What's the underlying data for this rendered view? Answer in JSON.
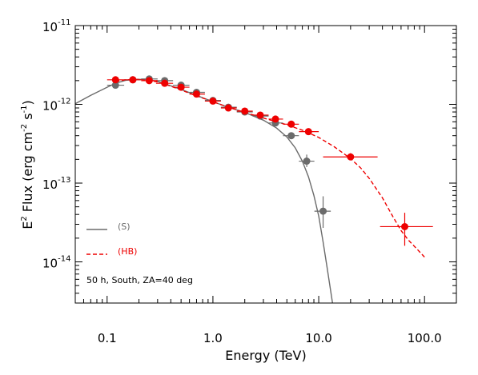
{
  "chart_data": {
    "type": "scatter",
    "xscale": "log",
    "yscale": "log",
    "xlim": [
      0.05,
      200
    ],
    "ylim": [
      3e-15,
      1e-11
    ],
    "grid": false,
    "xlabel": "Energy (TeV)",
    "ylabel": {
      "p1": "E",
      "sup1": "2",
      "p2": " Flux (erg cm",
      "sup2": "-2",
      "p3": " s",
      "sup3": "-1",
      "p4": ")"
    },
    "x_ticks": [
      {
        "value": 0.1,
        "label": "0.1"
      },
      {
        "value": 1,
        "label": "1.0"
      },
      {
        "value": 10,
        "label": "10.0"
      },
      {
        "value": 100,
        "label": "100.0"
      }
    ],
    "y_ticks": [
      {
        "value": 1e-14,
        "base": "10",
        "exp": "-14"
      },
      {
        "value": 1e-13,
        "base": "10",
        "exp": "-13"
      },
      {
        "value": 1e-12,
        "base": "10",
        "exp": "-12"
      },
      {
        "value": 1e-11,
        "base": "10",
        "exp": "-11"
      }
    ],
    "annotation": "50 h, South, ZA=40 deg",
    "series": [
      {
        "name": "(S)",
        "color": "#6b6b6b",
        "line_style": "solid",
        "curve": {
          "x": [
            0.05,
            0.07,
            0.1,
            0.12,
            0.15,
            0.2,
            0.25,
            0.3,
            0.4,
            0.5,
            0.7,
            1.0,
            1.4,
            2.0,
            3.0,
            4.0,
            5.0,
            6.0,
            7.0,
            8.0,
            9.0,
            10.0,
            11.0,
            12.0,
            13.5
          ],
          "y": [
            1.02e-12,
            1.3e-12,
            1.65e-12,
            1.85e-12,
            2.02e-12,
            2.08e-12,
            2.05e-12,
            1.95e-12,
            1.72e-12,
            1.55e-12,
            1.3e-12,
            1.08e-12,
            9.2e-13,
            7.9e-13,
            6.3e-13,
            5e-13,
            3.85e-13,
            2.8e-13,
            1.9e-13,
            1.2e-13,
            7e-14,
            3.8e-14,
            1.8e-14,
            8.5e-15,
            3e-15
          ]
        },
        "points": [
          {
            "x": 0.12,
            "y": 1.75e-12,
            "xerr": [
              0.1,
              0.145
            ],
            "yerr": [
              1.65e-12,
              1.85e-12
            ]
          },
          {
            "x": 0.175,
            "y": 2.05e-12,
            "xerr": [
              0.145,
              0.21
            ],
            "yerr": [
              1.95e-12,
              2.15e-12
            ]
          },
          {
            "x": 0.25,
            "y": 2.1e-12,
            "xerr": [
              0.21,
              0.3
            ],
            "yerr": [
              2e-12,
              2.2e-12
            ]
          },
          {
            "x": 0.35,
            "y": 2e-12,
            "xerr": [
              0.29,
              0.42
            ],
            "yerr": [
              1.9e-12,
              2.1e-12
            ]
          },
          {
            "x": 0.5,
            "y": 1.75e-12,
            "xerr": [
              0.42,
              0.6
            ],
            "yerr": [
              1.65e-12,
              1.85e-12
            ]
          },
          {
            "x": 0.7,
            "y": 1.42e-12,
            "xerr": [
              0.6,
              0.84
            ],
            "yerr": [
              1.35e-12,
              1.5e-12
            ]
          },
          {
            "x": 1.0,
            "y": 1.12e-12,
            "xerr": [
              0.84,
              1.19
            ],
            "yerr": [
              1.06e-12,
              1.18e-12
            ]
          },
          {
            "x": 1.4,
            "y": 9.2e-13,
            "xerr": [
              1.19,
              1.68
            ],
            "yerr": [
              8.7e-13,
              9.7e-13
            ]
          },
          {
            "x": 2.0,
            "y": 8e-13,
            "xerr": [
              1.68,
              2.38
            ],
            "yerr": [
              7.6e-13,
              8.4e-13
            ]
          },
          {
            "x": 2.8,
            "y": 7.1e-13,
            "xerr": [
              2.38,
              3.36
            ],
            "yerr": [
              6.7e-13,
              7.5e-13
            ]
          },
          {
            "x": 3.9,
            "y": 5.8e-13,
            "xerr": [
              3.36,
              4.6
            ],
            "yerr": [
              5.4e-13,
              6.2e-13
            ]
          },
          {
            "x": 5.5,
            "y": 4e-13,
            "xerr": [
              4.6,
              6.5
            ],
            "yerr": [
              3.7e-13,
              4.3e-13
            ]
          },
          {
            "x": 7.7,
            "y": 1.9e-13,
            "xerr": [
              6.5,
              9.1
            ],
            "yerr": [
              1.6e-13,
              2.3e-13
            ]
          },
          {
            "x": 11.0,
            "y": 4.4e-14,
            "xerr": [
              9.1,
              13.0
            ],
            "yerr": [
              2.7e-14,
              6.8e-14
            ]
          }
        ]
      },
      {
        "name": "(HB)",
        "color": "#ee0000",
        "line_style": "dashed",
        "curve": {
          "x": [
            0.12,
            0.15,
            0.2,
            0.25,
            0.3,
            0.4,
            0.5,
            0.7,
            1.0,
            1.4,
            2.0,
            3.0,
            4.0,
            5.0,
            7.0,
            10.0,
            14.0,
            20.0,
            25.0,
            30.0,
            40.0,
            50.0,
            60.0,
            70.0,
            85.0,
            100.0
          ],
          "y": [
            1.95e-12,
            2.05e-12,
            2.08e-12,
            2.02e-12,
            1.92e-12,
            1.7e-12,
            1.52e-12,
            1.28e-12,
            1.08e-12,
            9.2e-13,
            7.9e-13,
            6.7e-13,
            6e-13,
            5.5e-13,
            4.7e-13,
            3.8e-13,
            2.9e-13,
            2.05e-13,
            1.55e-13,
            1.15e-13,
            6.5e-14,
            3.8e-14,
            2.5e-14,
            1.9e-14,
            1.45e-14,
            1.15e-14
          ]
        },
        "points": [
          {
            "x": 0.12,
            "y": 2.05e-12,
            "xerr": [
              0.1,
              0.145
            ],
            "yerr": [
              1.95e-12,
              2.15e-12
            ]
          },
          {
            "x": 0.175,
            "y": 2.05e-12,
            "xerr": [
              0.145,
              0.21
            ],
            "yerr": [
              1.95e-12,
              2.15e-12
            ]
          },
          {
            "x": 0.25,
            "y": 2e-12,
            "xerr": [
              0.21,
              0.3
            ],
            "yerr": [
              1.9e-12,
              2.1e-12
            ]
          },
          {
            "x": 0.35,
            "y": 1.85e-12,
            "xerr": [
              0.29,
              0.42
            ],
            "yerr": [
              1.76e-12,
              1.95e-12
            ]
          },
          {
            "x": 0.5,
            "y": 1.65e-12,
            "xerr": [
              0.42,
              0.6
            ],
            "yerr": [
              1.57e-12,
              1.74e-12
            ]
          },
          {
            "x": 0.7,
            "y": 1.35e-12,
            "xerr": [
              0.6,
              0.84
            ],
            "yerr": [
              1.28e-12,
              1.42e-12
            ]
          },
          {
            "x": 1.0,
            "y": 1.1e-12,
            "xerr": [
              0.84,
              1.19
            ],
            "yerr": [
              1.04e-12,
              1.16e-12
            ]
          },
          {
            "x": 1.4,
            "y": 9e-13,
            "xerr": [
              1.19,
              1.68
            ],
            "yerr": [
              8.5e-13,
              9.5e-13
            ]
          },
          {
            "x": 2.0,
            "y": 8.2e-13,
            "xerr": [
              1.68,
              2.38
            ],
            "yerr": [
              7.8e-13,
              8.6e-13
            ]
          },
          {
            "x": 2.8,
            "y": 7.3e-13,
            "xerr": [
              2.38,
              3.36
            ],
            "yerr": [
              6.9e-13,
              7.7e-13
            ]
          },
          {
            "x": 3.9,
            "y": 6.5e-13,
            "xerr": [
              3.36,
              4.6
            ],
            "yerr": [
              6.1e-13,
              6.9e-13
            ]
          },
          {
            "x": 5.5,
            "y": 5.6e-13,
            "xerr": [
              4.6,
              6.5
            ],
            "yerr": [
              5.2e-13,
              6e-13
            ]
          },
          {
            "x": 8.0,
            "y": 4.5e-13,
            "xerr": [
              6.5,
              10.0
            ],
            "yerr": [
              4.2e-13,
              4.8e-13
            ]
          },
          {
            "x": 20.0,
            "y": 2.15e-13,
            "xerr": [
              11.0,
              36.0
            ],
            "yerr": [
              1.95e-13,
              2.4e-13
            ]
          },
          {
            "x": 65.0,
            "y": 2.8e-14,
            "xerr": [
              38.0,
              120.0
            ],
            "yerr": [
              1.6e-14,
              4.2e-14
            ]
          }
        ]
      }
    ]
  }
}
